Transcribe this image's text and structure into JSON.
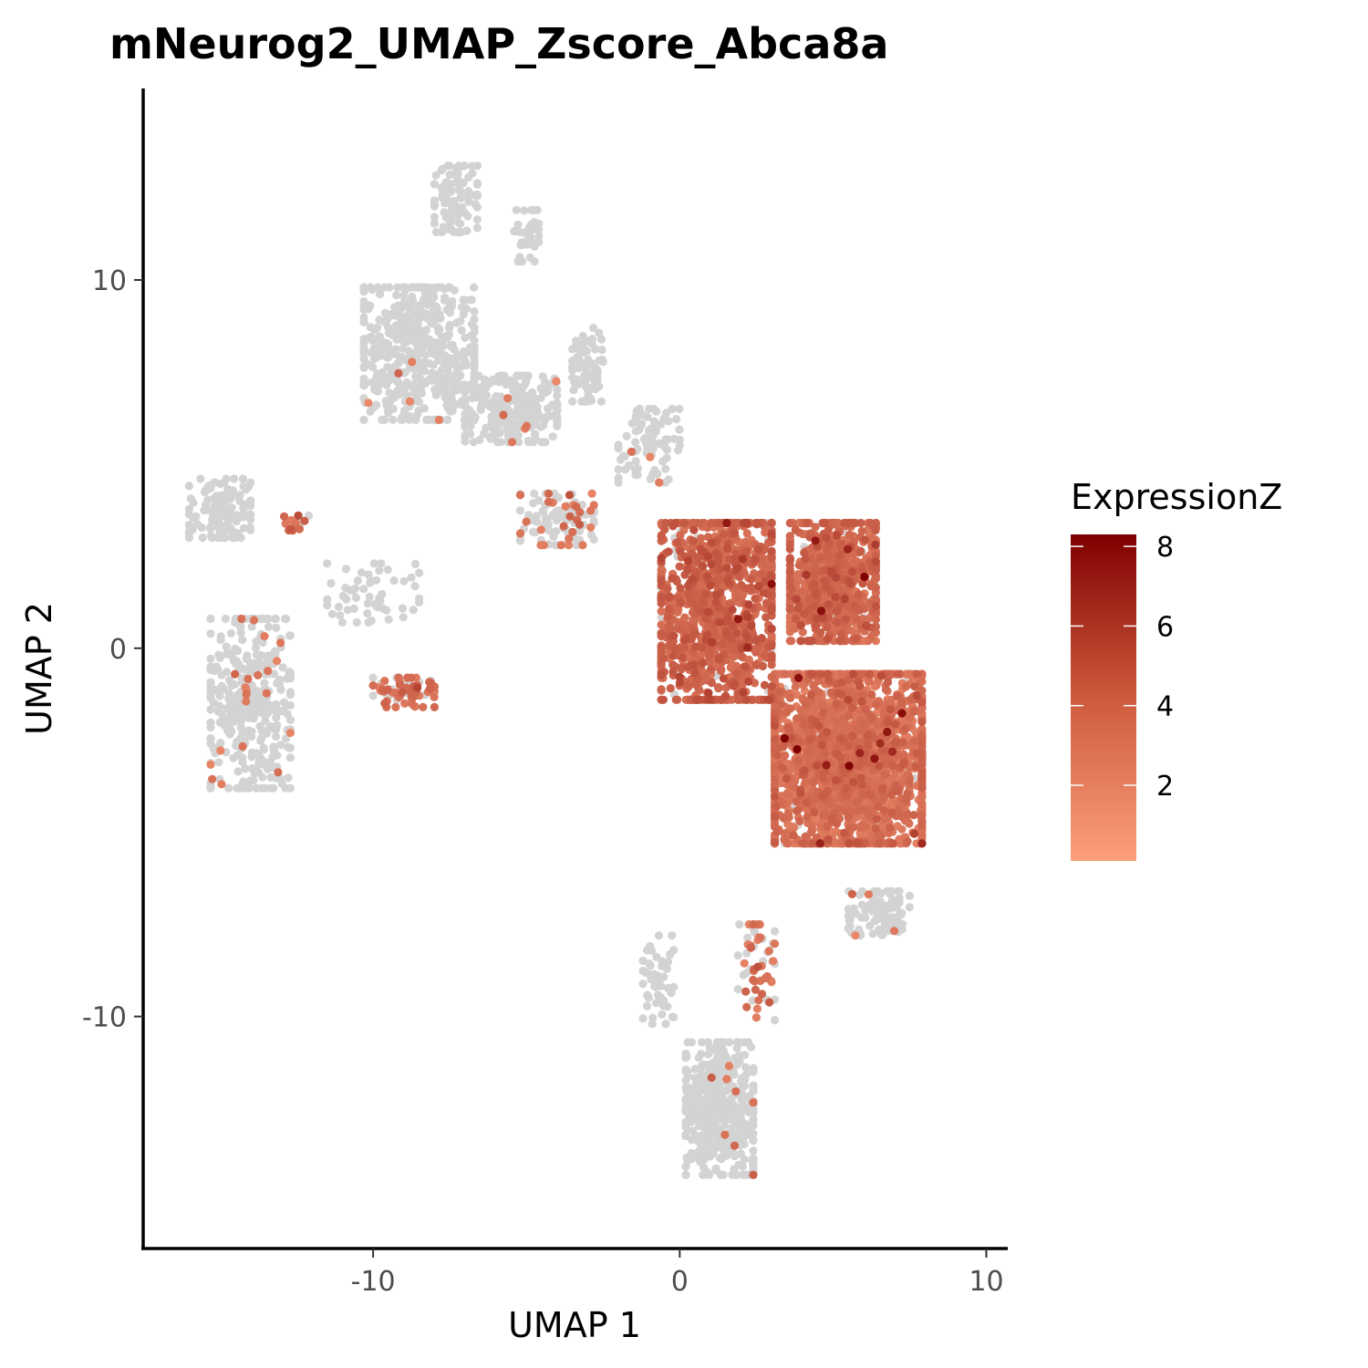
{
  "chart_data": {
    "type": "scatter",
    "title": "mNeurog2_UMAP_Zscore_Abca8a",
    "xlabel": "UMAP 1",
    "ylabel": "UMAP 2",
    "xlim": [
      -17.5,
      10.7
    ],
    "ylim": [
      -16.3,
      15.2
    ],
    "x_ticks": [
      -10,
      0,
      10
    ],
    "y_ticks": [
      -10,
      0,
      10
    ],
    "x_tick_labels": [
      "-10",
      "0",
      "10"
    ],
    "y_tick_labels": [
      "-10",
      "0",
      "10"
    ],
    "grid": false,
    "point_colors": {
      "not_expressed": "#d3d3d3",
      "low": "#fc9f7a",
      "high": "#7f0000"
    },
    "legend": {
      "title": "ExpressionZ",
      "position": "right",
      "range": [
        0.1,
        8.3
      ],
      "ticks": [
        2,
        4,
        6,
        8
      ],
      "tick_labels": [
        "2",
        "4",
        "6",
        "8"
      ]
    },
    "clusters": [
      {
        "name": "",
        "center": [
          -8.5,
          8.0
        ],
        "spread": [
          1.8,
          1.8
        ],
        "n": 500,
        "expressed_fraction": 0.01,
        "z_mean": 1.2
      },
      {
        "name": "",
        "center": [
          -5.5,
          6.5
        ],
        "spread": [
          1.5,
          0.9
        ],
        "n": 260,
        "expressed_fraction": 0.01,
        "z_mean": 1.2
      },
      {
        "name": "",
        "center": [
          -7.3,
          12.2
        ],
        "spread": [
          0.7,
          0.9
        ],
        "n": 90,
        "expressed_fraction": 0.0,
        "z_mean": 1.0
      },
      {
        "name": "",
        "center": [
          -5.0,
          11.2
        ],
        "spread": [
          0.4,
          0.7
        ],
        "n": 45,
        "expressed_fraction": 0.0,
        "z_mean": 1.0
      },
      {
        "name": "",
        "center": [
          -3.0,
          7.7
        ],
        "spread": [
          0.5,
          1.0
        ],
        "n": 80,
        "expressed_fraction": 0.0,
        "z_mean": 1.0
      },
      {
        "name": "",
        "center": [
          -4.0,
          3.5
        ],
        "spread": [
          1.2,
          0.7
        ],
        "n": 110,
        "expressed_fraction": 0.35,
        "z_mean": 1.5
      },
      {
        "name": "",
        "center": [
          -1.0,
          5.5
        ],
        "spread": [
          1.0,
          1.0
        ],
        "n": 90,
        "expressed_fraction": 0.03,
        "z_mean": 1.2
      },
      {
        "name": "",
        "center": [
          -15.0,
          3.8
        ],
        "spread": [
          1.0,
          0.8
        ],
        "n": 120,
        "expressed_fraction": 0.01,
        "z_mean": 1.5
      },
      {
        "name": "",
        "center": [
          -12.5,
          3.4
        ],
        "spread": [
          0.4,
          0.2
        ],
        "n": 18,
        "expressed_fraction": 0.7,
        "z_mean": 2.0
      },
      {
        "name": "",
        "center": [
          -14.0,
          -1.5
        ],
        "spread": [
          1.3,
          2.3
        ],
        "n": 360,
        "expressed_fraction": 0.06,
        "z_mean": 1.4
      },
      {
        "name": "",
        "center": [
          -9.0,
          -1.2
        ],
        "spread": [
          1.0,
          0.4
        ],
        "n": 70,
        "expressed_fraction": 0.75,
        "z_mean": 1.8
      },
      {
        "name": "",
        "center": [
          -10.0,
          1.5
        ],
        "spread": [
          1.5,
          0.8
        ],
        "n": 55,
        "expressed_fraction": 0.0,
        "z_mean": 1.0
      },
      {
        "name": "",
        "center": [
          1.2,
          1.0
        ],
        "spread": [
          1.8,
          2.4
        ],
        "n": 1100,
        "expressed_fraction": 0.97,
        "z_mean": 2.3
      },
      {
        "name": "",
        "center": [
          5.0,
          1.8
        ],
        "spread": [
          1.4,
          1.6
        ],
        "n": 800,
        "expressed_fraction": 0.96,
        "z_mean": 2.0
      },
      {
        "name": "",
        "center": [
          5.5,
          -3.0
        ],
        "spread": [
          2.4,
          2.3
        ],
        "n": 2200,
        "expressed_fraction": 0.95,
        "z_mean": 1.6
      },
      {
        "name": "",
        "center": [
          6.5,
          -7.2
        ],
        "spread": [
          1.0,
          0.6
        ],
        "n": 90,
        "expressed_fraction": 0.05,
        "z_mean": 1.2
      },
      {
        "name": "",
        "center": [
          2.5,
          -8.8
        ],
        "spread": [
          0.6,
          1.3
        ],
        "n": 60,
        "expressed_fraction": 0.55,
        "z_mean": 1.6
      },
      {
        "name": "",
        "center": [
          1.3,
          -12.5
        ],
        "spread": [
          1.1,
          1.8
        ],
        "n": 440,
        "expressed_fraction": 0.01,
        "z_mean": 1.5
      },
      {
        "name": "",
        "center": [
          -0.7,
          -9.0
        ],
        "spread": [
          0.5,
          1.2
        ],
        "n": 50,
        "expressed_fraction": 0.0,
        "z_mean": 1.0
      }
    ]
  }
}
